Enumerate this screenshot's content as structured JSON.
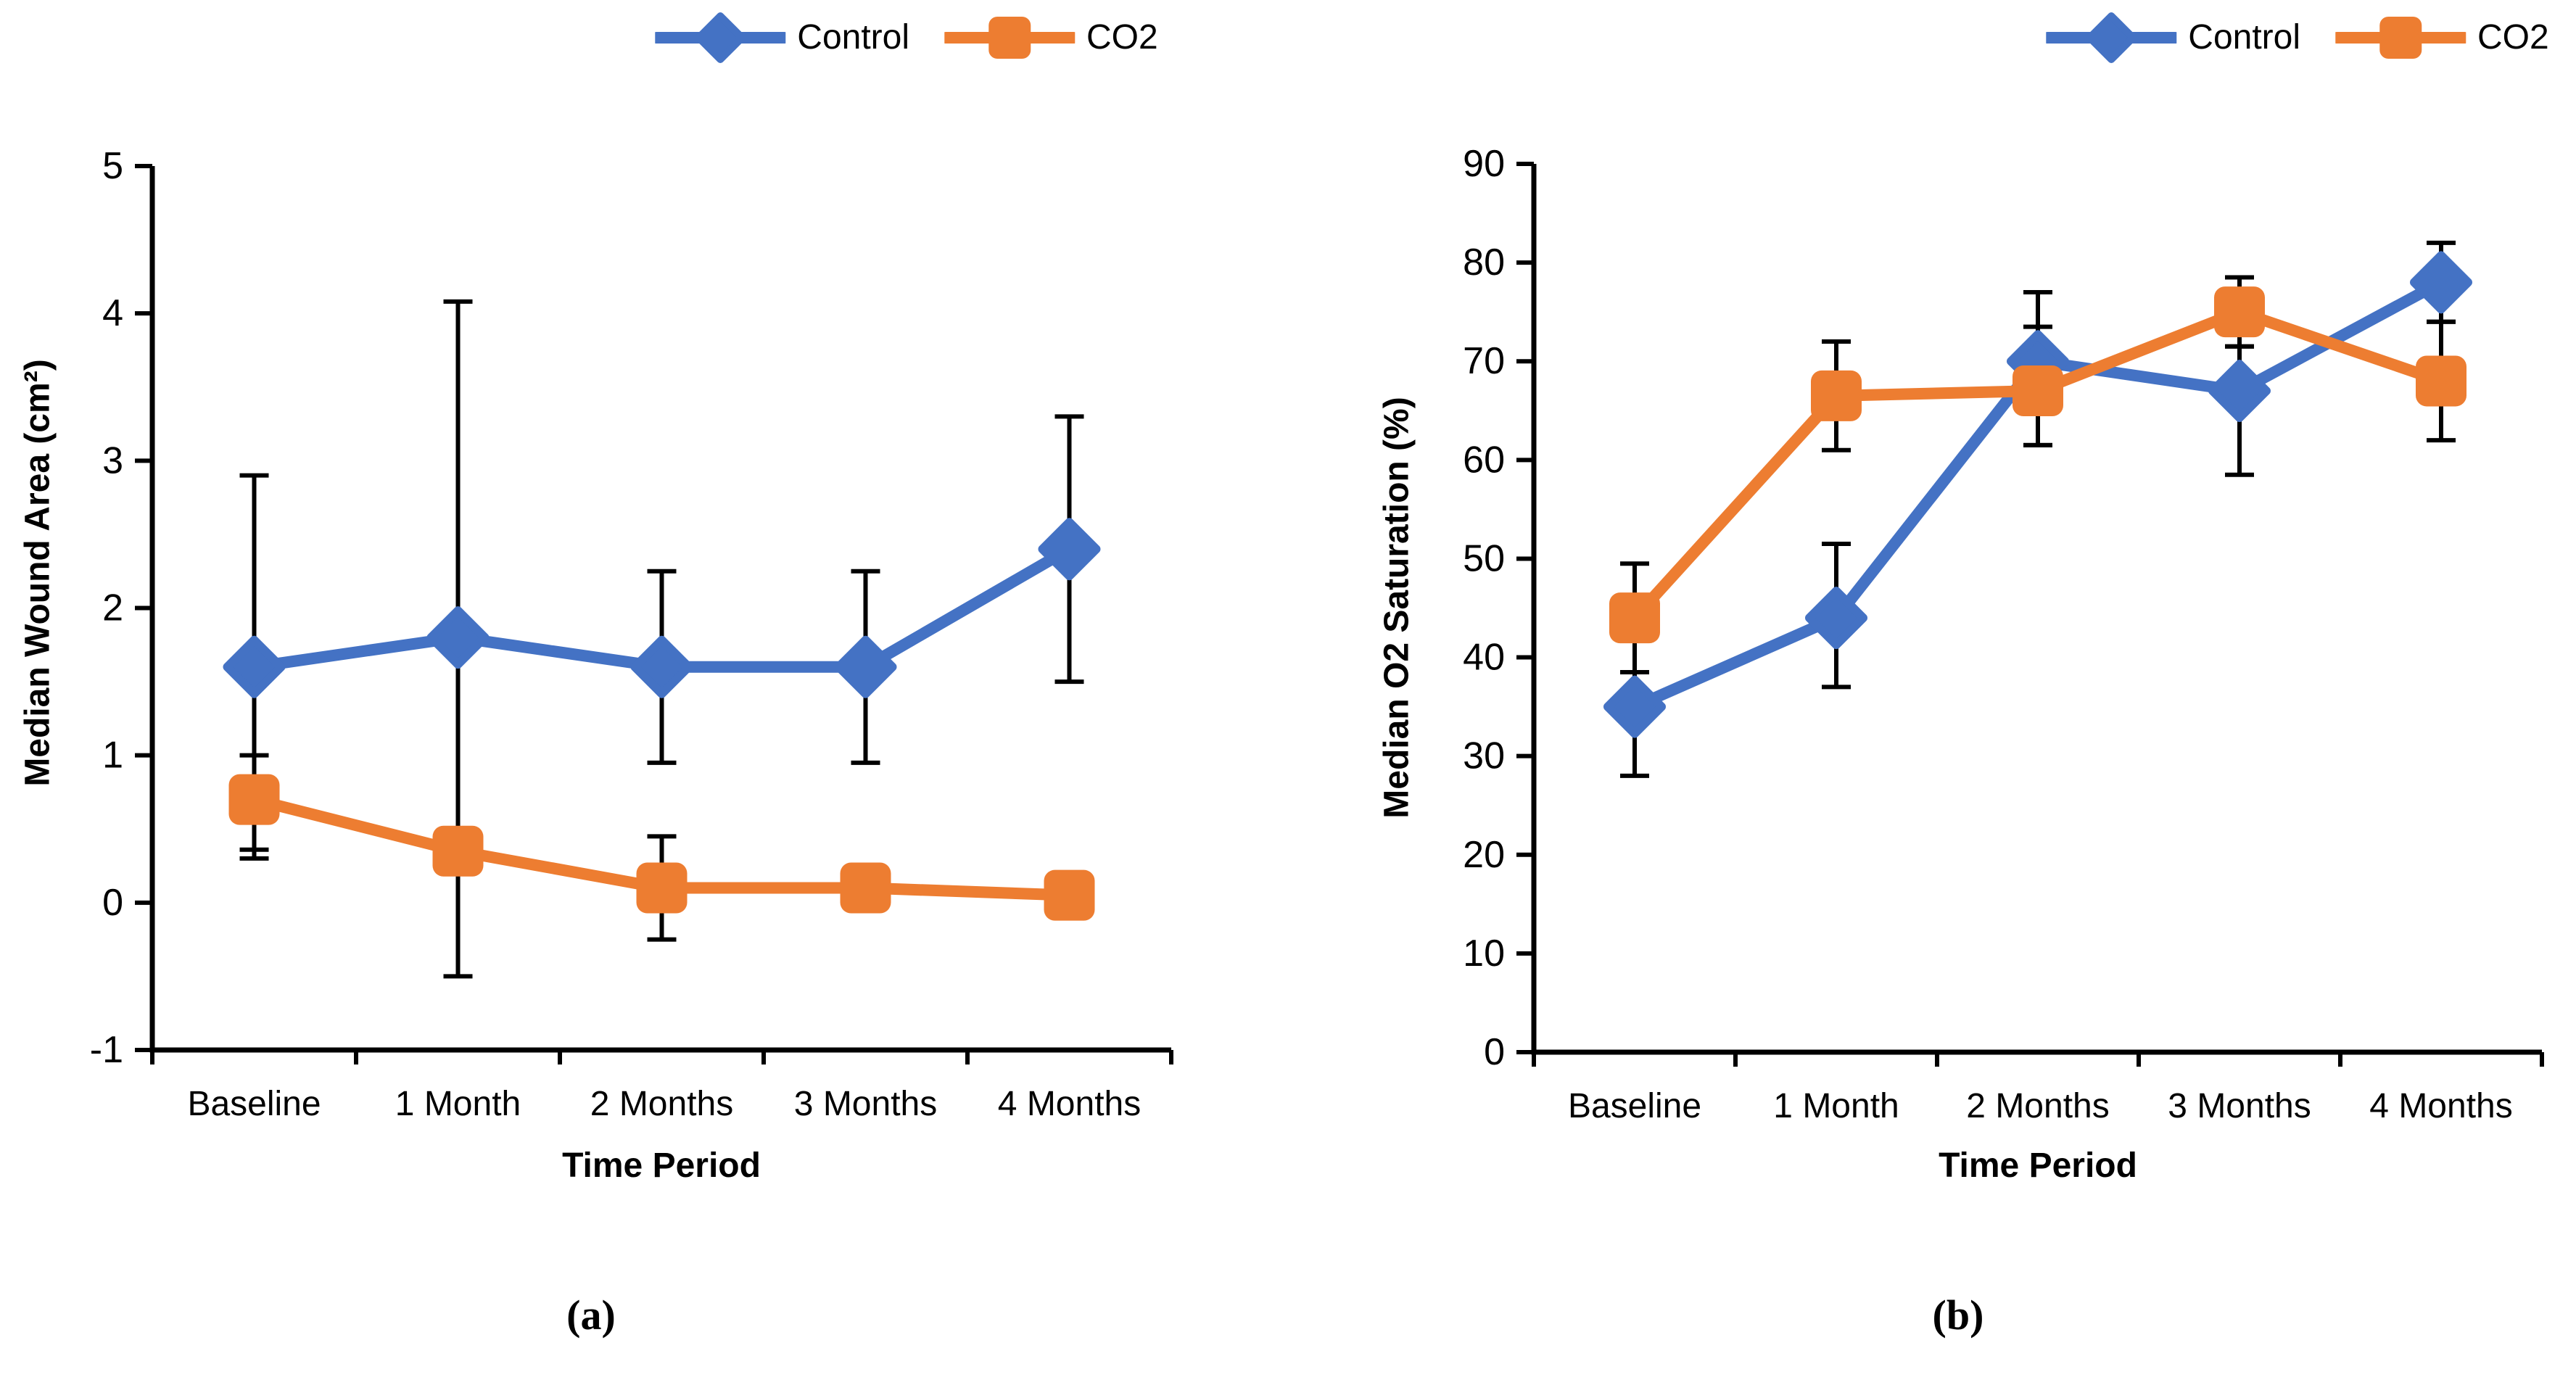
{
  "legend_labels": {
    "control": "Control",
    "co2": "CO2"
  },
  "colors": {
    "control_blue": "#4472C4",
    "co2_orange": "#ED7D31",
    "axis_black": "#000000"
  },
  "chart_data": [
    {
      "id": "a",
      "type": "line",
      "caption": "(a)",
      "xlabel": "Time Period",
      "ylabel": "Median Wound Area (cm²)",
      "categories": [
        "Baseline",
        "1 Month",
        "2 Months",
        "3 Months",
        "4 Months"
      ],
      "ylim": [
        -1,
        5
      ],
      "yticks": [
        5,
        4,
        3,
        2,
        1,
        0,
        -1
      ],
      "grid": false,
      "legend_position": "top",
      "series": [
        {
          "name": "Control",
          "color": "#4472C4",
          "marker": "diamond",
          "values": [
            1.6,
            1.8,
            1.6,
            1.6,
            2.4
          ],
          "err_lo": [
            0.3,
            -0.5,
            0.95,
            0.95,
            1.5
          ],
          "err_hi": [
            2.9,
            4.08,
            2.25,
            2.25,
            3.3
          ]
        },
        {
          "name": "CO2",
          "color": "#ED7D31",
          "marker": "square",
          "values": [
            0.7,
            0.35,
            0.1,
            0.1,
            0.05
          ],
          "err_lo": [
            0.36,
            null,
            -0.25,
            null,
            null
          ],
          "err_hi": [
            1.0,
            null,
            0.45,
            null,
            null
          ]
        }
      ]
    },
    {
      "id": "b",
      "type": "line",
      "caption": "(b)",
      "xlabel": "Time Period",
      "ylabel": "Median O2 Saturation (%)",
      "categories": [
        "Baseline",
        "1 Month",
        "2 Months",
        "3 Months",
        "4 Months"
      ],
      "ylim": [
        0,
        90
      ],
      "yticks": [
        90,
        80,
        70,
        60,
        50,
        40,
        30,
        20,
        10,
        0
      ],
      "grid": false,
      "legend_position": "top",
      "series": [
        {
          "name": "Control",
          "color": "#4472C4",
          "marker": "diamond",
          "values": [
            35,
            44,
            70,
            67,
            78
          ],
          "err_lo": [
            28,
            37,
            61.5,
            58.5,
            74
          ],
          "err_hi": [
            38.5,
            51.5,
            77,
            71.5,
            82
          ]
        },
        {
          "name": "CO2",
          "color": "#ED7D31",
          "marker": "square",
          "values": [
            44,
            66.5,
            67,
            75,
            68
          ],
          "err_lo": [
            38.5,
            61,
            61.5,
            71.5,
            62
          ],
          "err_hi": [
            49.5,
            72,
            73.5,
            78.5,
            74
          ]
        }
      ]
    }
  ]
}
